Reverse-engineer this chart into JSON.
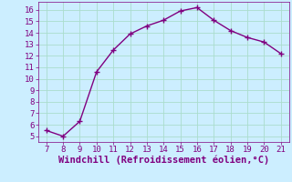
{
  "x": [
    7,
    8,
    9,
    10,
    11,
    12,
    13,
    14,
    15,
    16,
    17,
    18,
    19,
    20,
    21
  ],
  "y": [
    5.5,
    5.0,
    6.3,
    10.6,
    12.5,
    13.9,
    14.6,
    15.1,
    15.9,
    16.2,
    15.1,
    14.2,
    13.6,
    13.2,
    12.2
  ],
  "line_color": "#800080",
  "marker": "+",
  "marker_color": "#800080",
  "background_color": "#cceeff",
  "grid_color": "#aaddcc",
  "xlabel": "Windchill (Refroidissement éolien,°C)",
  "xlabel_color": "#800080",
  "tick_color": "#800080",
  "xlim": [
    6.5,
    21.5
  ],
  "ylim": [
    4.5,
    16.7
  ],
  "xticks": [
    7,
    8,
    9,
    10,
    11,
    12,
    13,
    14,
    15,
    16,
    17,
    18,
    19,
    20,
    21
  ],
  "yticks": [
    5,
    6,
    7,
    8,
    9,
    10,
    11,
    12,
    13,
    14,
    15,
    16
  ],
  "tick_fontsize": 6.5,
  "xlabel_fontsize": 7.5,
  "linewidth": 1.0,
  "markersize": 4
}
